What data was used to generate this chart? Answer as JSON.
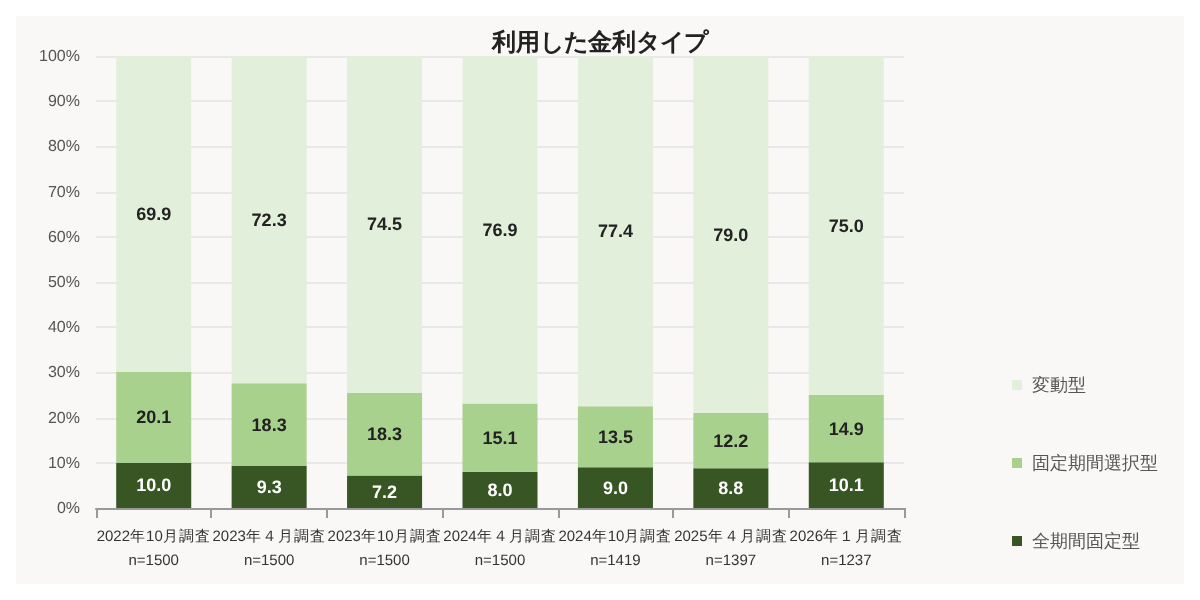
{
  "chart_data": {
    "type": "bar",
    "title": "利用した金利タイプ",
    "stacked": true,
    "grid": "y",
    "legend": "right",
    "categories": [
      "2022年10月調査\nn=1500",
      "2023年４月調査\nn=1500",
      "2023年10月調査\nn=1500",
      "2024年４月調査\nn=1500",
      "2024年10月調査\nn=1419",
      "2025年４月調査\nn=1397",
      "2026年１月調査\nn=1237"
    ],
    "series": [
      {
        "name": "全期間固定型",
        "color": "#375623",
        "values": [
          10.0,
          9.3,
          7.2,
          8.0,
          9.0,
          8.8,
          10.1
        ],
        "value_labels": [
          "10.0",
          "9.3",
          "7.2",
          "8.0",
          "9.0",
          "8.8",
          "10.1"
        ]
      },
      {
        "name": "固定期間選択型",
        "color": "#a9d18e",
        "values": [
          20.1,
          18.3,
          18.3,
          15.1,
          13.5,
          12.2,
          14.9
        ],
        "value_labels": [
          "20.1",
          "18.3",
          "18.3",
          "15.1",
          "13.5",
          "12.2",
          "14.9"
        ]
      },
      {
        "name": "変動型",
        "color": "#e2efda",
        "values": [
          69.9,
          72.3,
          74.5,
          76.9,
          77.4,
          79.0,
          75.0
        ],
        "value_labels": [
          "69.9",
          "72.3",
          "74.5",
          "76.9",
          "77.4",
          "79.0",
          "75.0"
        ]
      }
    ],
    "ylim": [
      0,
      100
    ],
    "yticks": [
      {
        "value": 0,
        "label": "0%"
      },
      {
        "value": 10,
        "label": "10%"
      },
      {
        "value": 20,
        "label": "20%"
      },
      {
        "value": 30,
        "label": "30%"
      },
      {
        "value": 40,
        "label": "40%"
      },
      {
        "value": 50,
        "label": "50%"
      },
      {
        "value": 60,
        "label": "60%"
      },
      {
        "value": 70,
        "label": "70%"
      },
      {
        "value": 80,
        "label": "80%"
      },
      {
        "value": 90,
        "label": "90%"
      },
      {
        "value": 100,
        "label": "100%"
      }
    ]
  }
}
